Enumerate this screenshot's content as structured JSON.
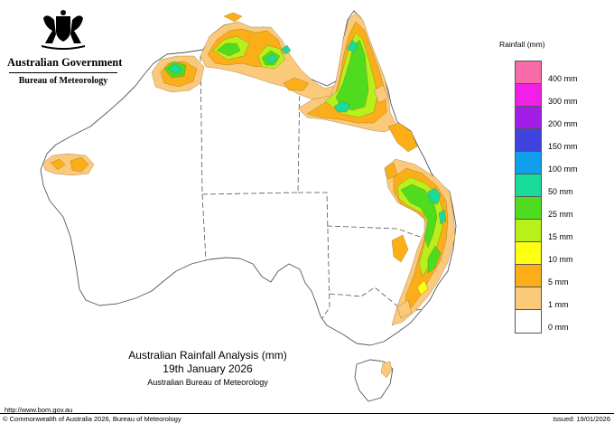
{
  "header": {
    "government": "Australian Government",
    "bureau": "Bureau of Meteorology"
  },
  "legend": {
    "title": "Rainfall (mm)",
    "bins": [
      {
        "label": "400 mm",
        "color": "#f86aa8"
      },
      {
        "label": "300 mm",
        "color": "#f21fe9"
      },
      {
        "label": "200 mm",
        "color": "#a01ee8"
      },
      {
        "label": "150 mm",
        "color": "#3f43dd"
      },
      {
        "label": "100 mm",
        "color": "#109fec"
      },
      {
        "label": "50 mm",
        "color": "#19dc9a"
      },
      {
        "label": "25 mm",
        "color": "#4fdc1f"
      },
      {
        "label": "15 mm",
        "color": "#b8f01a"
      },
      {
        "label": "10 mm",
        "color": "#ffff13"
      },
      {
        "label": "5 mm",
        "color": "#fcae18"
      },
      {
        "label": "1 mm",
        "color": "#fbc97a"
      },
      {
        "label": "0 mm",
        "color": "#ffffff"
      }
    ]
  },
  "caption": {
    "title": "Australian Rainfall Analysis (mm)",
    "date": "19th January 2026",
    "agency": "Australian Bureau of Meteorology"
  },
  "footer": {
    "url": "http://www.bom.gov.au",
    "copyright": "© Commonwealth of Australia 2026, Bureau of Meteorology",
    "issued": "Issued: 19/01/2026"
  }
}
